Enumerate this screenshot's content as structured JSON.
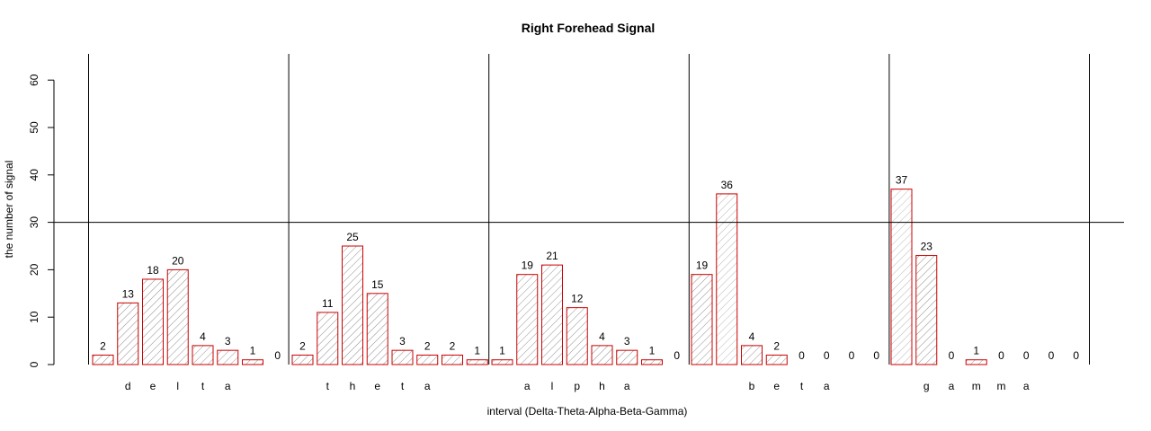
{
  "chart_data": {
    "type": "bar",
    "title": "Right Forehead Signal",
    "xlabel": "interval (Delta-Theta-Alpha-Beta-Gamma)",
    "ylabel": "the number of signal",
    "ylim": [
      0,
      60
    ],
    "yticks": [
      0,
      10,
      20,
      30,
      40,
      50,
      60
    ],
    "reference_line_y": 30,
    "bar_color": "#cc0000",
    "groups": [
      {
        "letters": [
          "d",
          "e",
          "l",
          "t",
          "a"
        ],
        "values": [
          2,
          13,
          18,
          20,
          4,
          3,
          1,
          0
        ]
      },
      {
        "letters": [
          "t",
          "h",
          "e",
          "t",
          "a"
        ],
        "values": [
          2,
          11,
          25,
          15,
          3,
          2,
          2,
          1
        ]
      },
      {
        "letters": [
          "a",
          "l",
          "p",
          "h",
          "a"
        ],
        "values": [
          1,
          19,
          21,
          12,
          4,
          3,
          1,
          0
        ]
      },
      {
        "letters": [
          "b",
          "e",
          "t",
          "a"
        ],
        "values": [
          19,
          36,
          4,
          2,
          0,
          0,
          0,
          0
        ]
      },
      {
        "letters": [
          "g",
          "a",
          "m",
          "m",
          "a"
        ],
        "values": [
          37,
          23,
          0,
          1,
          0,
          0,
          0,
          0
        ]
      }
    ]
  }
}
